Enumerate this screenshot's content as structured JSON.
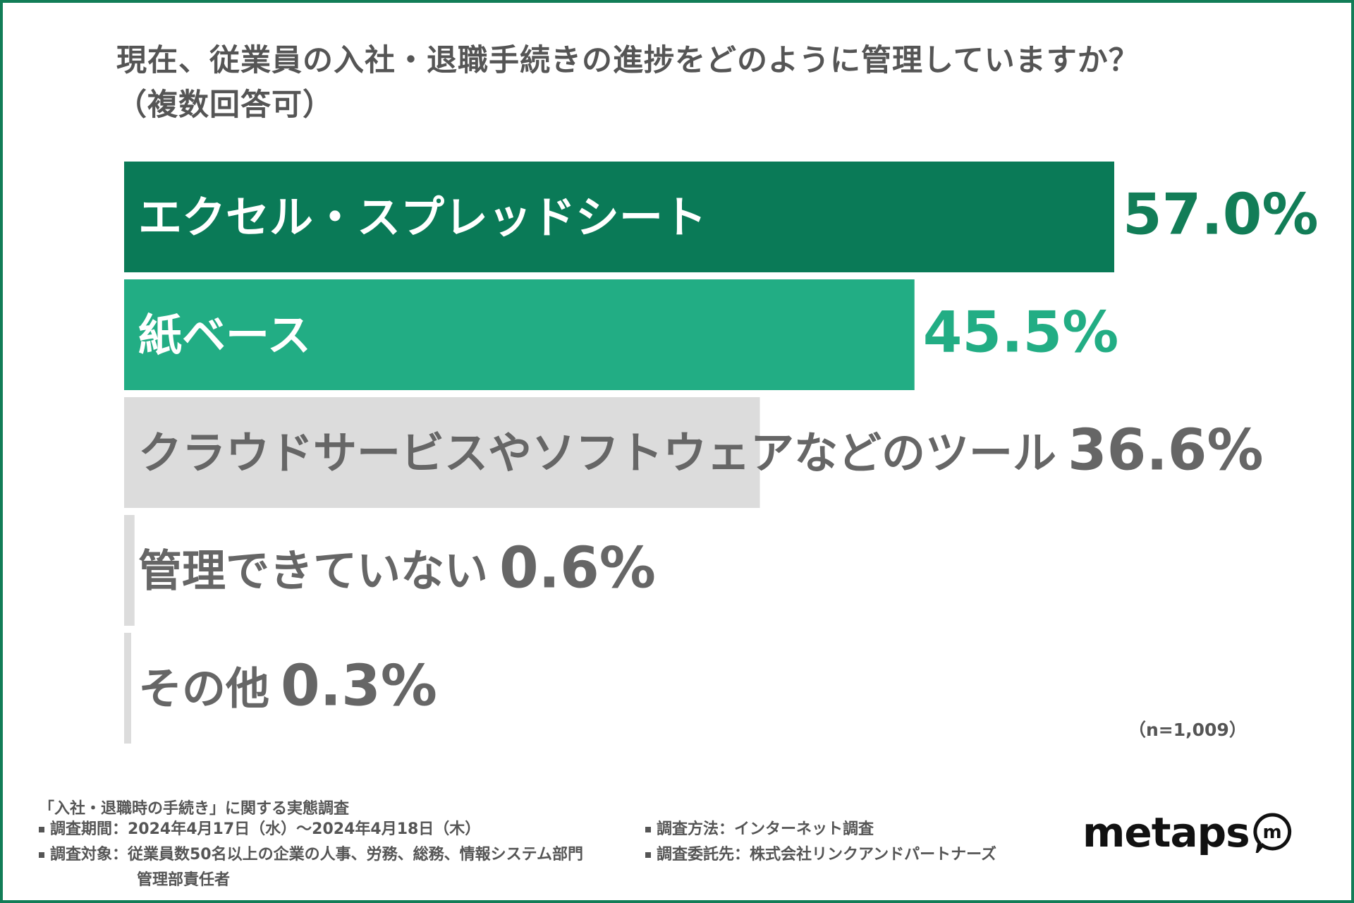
{
  "title_line1": "現在、従業員の入社・退職手続きの進捗をどのように管理していますか？",
  "title_line2": "（複数回答可）",
  "chart_data": {
    "type": "bar",
    "orientation": "horizontal",
    "categories": [
      "エクセル・スプレッドシート",
      "紙ベース",
      "クラウドサービスやソフトウェアなどのツール",
      "管理できていない",
      "その他"
    ],
    "values": [
      57.0,
      45.5,
      36.6,
      0.6,
      0.3
    ],
    "value_labels": [
      "57.0%",
      "45.5%",
      "36.6%",
      "0.6%",
      "0.3%"
    ],
    "bar_colors": [
      "#0a7a57",
      "#22ad84",
      "#dcdcdc",
      "#dcdcdc",
      "#dcdcdc"
    ],
    "label_colors": [
      "#ffffff",
      "#ffffff",
      "#666666",
      "#666666",
      "#666666"
    ],
    "value_colors": [
      "#127d57",
      "#22ad84",
      "#666666",
      "#666666",
      "#666666"
    ],
    "xlim": [
      0,
      57.0
    ]
  },
  "sample_size": "（n=1,009）",
  "footer": {
    "survey_name": "「入社・退職時の手続き」に関する実態調査",
    "period": "調査期間：2024年4月17日（水）〜2024年4月18日（木）",
    "target_line1": "調査対象：従業員数50名以上の企業の人事、労務、総務、情報システム部門",
    "target_line2": "管理部責任者",
    "method": "調査方法：インターネット調査",
    "client": "調査委託先：株式会社リンクアンドパートナーズ"
  },
  "logo": {
    "text": "metaps",
    "badge_letter": "m"
  },
  "colors": {
    "border": "#127d57",
    "text": "#555555"
  }
}
